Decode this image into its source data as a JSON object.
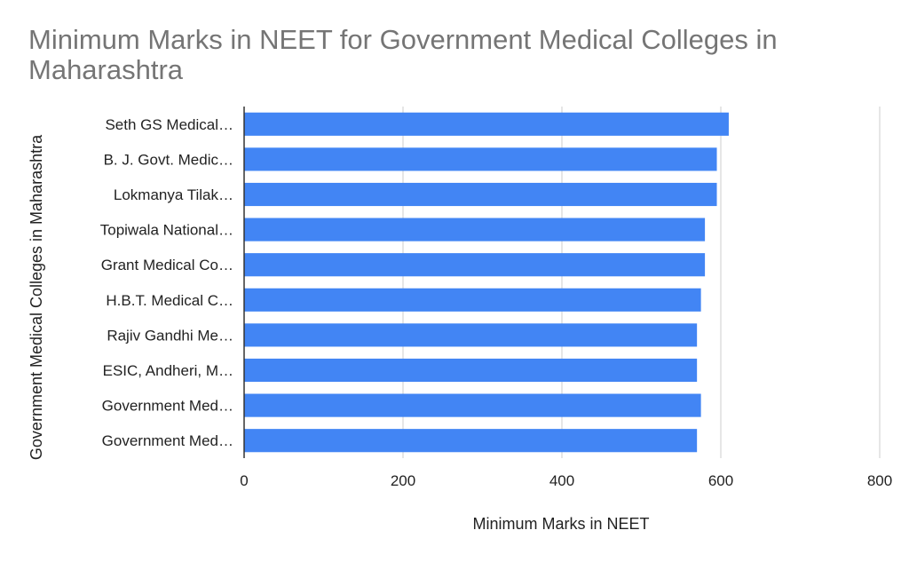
{
  "chart_data": {
    "type": "bar",
    "orientation": "horizontal",
    "title": "Minimum Marks in NEET for Government Medical Colleges in Maharashtra",
    "xlabel": "Minimum Marks in NEET",
    "ylabel": "Government Medical Colleges in Maharashtra",
    "categories": [
      "Seth GS Medical…",
      "B. J. Govt. Medic…",
      "Lokmanya Tilak…",
      "Topiwala National…",
      "Grant Medical Co…",
      "H.B.T. Medical C…",
      "Rajiv Gandhi Me…",
      "ESIC, Andheri, M…",
      "Government Med…",
      "Government Med…"
    ],
    "values": [
      610,
      595,
      595,
      580,
      580,
      575,
      570,
      570,
      575,
      570
    ],
    "xlim": [
      0,
      800
    ],
    "xticks": [
      "0",
      "200",
      "400",
      "600",
      "800"
    ],
    "grid": true,
    "color": "#4285f4"
  }
}
